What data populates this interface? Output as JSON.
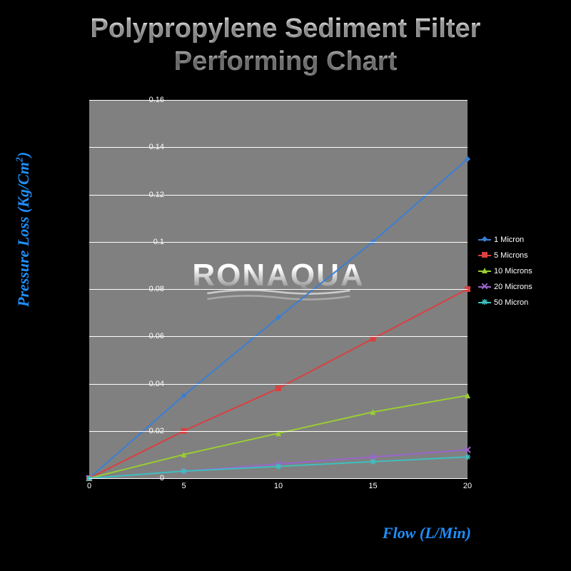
{
  "title_line1": "Polypropylene Sediment Filter",
  "title_line2": "Performing Chart",
  "yaxis_label": "Pressure Loss (Kg/Cm",
  "yaxis_label_sup": "2",
  "yaxis_label_end": ")",
  "xaxis_label": "Flow (L/Min)",
  "watermark": "RONAQUA",
  "chart": {
    "type": "line",
    "background_color": "#808080",
    "grid_color": "#ffffff",
    "xlim": [
      0,
      20
    ],
    "ylim": [
      0,
      0.16
    ],
    "xticks": [
      0,
      5,
      10,
      15,
      20
    ],
    "yticks": [
      0,
      0.02,
      0.04,
      0.06,
      0.08,
      0.1,
      0.12,
      0.14,
      0.16
    ],
    "tick_fontsize": 11,
    "tick_color": "#ffffff",
    "axis_label_color": "#1e90ff",
    "axis_label_fontsize": 22,
    "x_values": [
      0,
      5,
      10,
      15,
      20
    ],
    "series": [
      {
        "name": "1 Micron",
        "color": "#3a7fd5",
        "marker": "diamond",
        "values": [
          0,
          0.035,
          0.068,
          0.1,
          0.135
        ]
      },
      {
        "name": "5 Microns",
        "color": "#d94040",
        "marker": "square",
        "values": [
          0,
          0.02,
          0.038,
          0.059,
          0.08
        ]
      },
      {
        "name": "10 Microns",
        "color": "#9acd32",
        "marker": "triangle",
        "values": [
          0,
          0.01,
          0.019,
          0.028,
          0.035
        ]
      },
      {
        "name": "20 Microns",
        "color": "#9966cc",
        "marker": "x",
        "values": [
          0,
          0.003,
          0.006,
          0.009,
          0.012
        ]
      },
      {
        "name": "50 Micron",
        "color": "#3fbfbf",
        "marker": "star",
        "values": [
          0,
          0.003,
          0.005,
          0.007,
          0.009
        ]
      }
    ],
    "line_width": 2,
    "marker_size": 8
  }
}
